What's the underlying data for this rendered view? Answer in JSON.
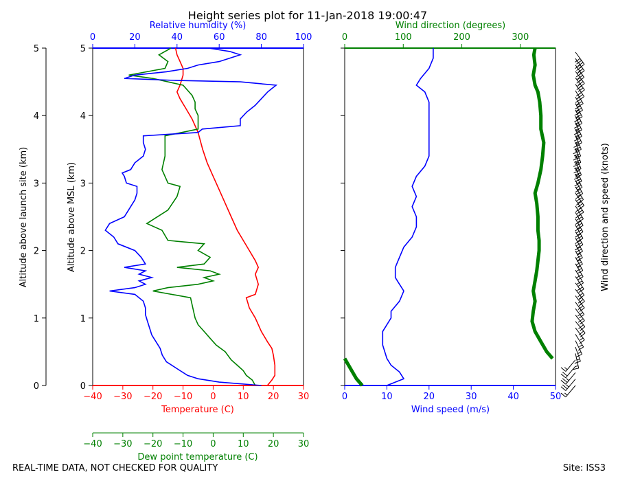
{
  "title": "Height series plot for 11-Jan-2018 19:00:47",
  "footer": {
    "quality_note": "REAL-TIME DATA, NOT CHECKED FOR QUALITY",
    "site": "Site: ISS3"
  },
  "colors": {
    "temperature": "#ff0000",
    "dewpoint": "#008000",
    "humidity": "#0000ff",
    "wind_speed": "#0000ff",
    "wind_direction": "#008000",
    "barbs": "#000000"
  },
  "chart_data": [
    {
      "type": "line",
      "panel": "thermodynamic",
      "y_axes": [
        {
          "label": "Altitude above launch site (km)",
          "range": [
            0,
            5
          ],
          "ticks": [
            "0",
            "1",
            "2",
            "3",
            "4",
            "5"
          ]
        },
        {
          "label": "Altitude above MSL (km)",
          "range": [
            0,
            5
          ],
          "ticks": [
            "0",
            "1",
            "2",
            "3",
            "4",
            "5"
          ]
        }
      ],
      "x_axes": [
        {
          "label": "Temperature (C)",
          "position": "bottom",
          "range": [
            -40,
            30
          ],
          "ticks": [
            "−40",
            "−30",
            "−20",
            "−10",
            "0",
            "10",
            "20",
            "30"
          ],
          "color": "#ff0000"
        },
        {
          "label": "Dew point temperature (C)",
          "position": "bottom-offset",
          "range": [
            -40,
            30
          ],
          "ticks": [
            "−40",
            "−30",
            "−20",
            "−10",
            "0",
            "10",
            "20",
            "30"
          ],
          "color": "#008000"
        },
        {
          "label": "Relative humidity (%)",
          "position": "top",
          "range": [
            0,
            100
          ],
          "ticks": [
            "0",
            "20",
            "40",
            "60",
            "80",
            "100"
          ],
          "color": "#0000ff"
        }
      ],
      "series": [
        {
          "name": "Temperature",
          "axis": "temperature",
          "color": "#ff0000",
          "points": [
            [
              18,
              0
            ],
            [
              19.5,
              0.08
            ],
            [
              20.5,
              0.15
            ],
            [
              20.5,
              0.3
            ],
            [
              20,
              0.45
            ],
            [
              19.5,
              0.55
            ],
            [
              18,
              0.65
            ],
            [
              16,
              0.8
            ],
            [
              14,
              1.0
            ],
            [
              12,
              1.15
            ],
            [
              11,
              1.3
            ],
            [
              14,
              1.35
            ],
            [
              15,
              1.5
            ],
            [
              14,
              1.65
            ],
            [
              15,
              1.75
            ],
            [
              14,
              1.85
            ],
            [
              12,
              2.0
            ],
            [
              10,
              2.15
            ],
            [
              8,
              2.3
            ],
            [
              6,
              2.5
            ],
            [
              4,
              2.7
            ],
            [
              2,
              2.9
            ],
            [
              0,
              3.1
            ],
            [
              -2,
              3.3
            ],
            [
              -3.5,
              3.5
            ],
            [
              -5,
              3.75
            ],
            [
              -7,
              3.95
            ],
            [
              -9,
              4.1
            ],
            [
              -11,
              4.25
            ],
            [
              -12,
              4.35
            ],
            [
              -11,
              4.45
            ],
            [
              -10,
              4.6
            ],
            [
              -10,
              4.7
            ],
            [
              -11,
              4.8
            ],
            [
              -12,
              4.9
            ],
            [
              -12.5,
              5.0
            ]
          ]
        },
        {
          "name": "Dew point",
          "axis": "temperature",
          "color": "#008000",
          "points": [
            [
              14,
              0.0
            ],
            [
              13,
              0.08
            ],
            [
              11,
              0.15
            ],
            [
              10,
              0.22
            ],
            [
              8,
              0.3
            ],
            [
              6,
              0.38
            ],
            [
              4,
              0.5
            ],
            [
              1,
              0.6
            ],
            [
              -1,
              0.7
            ],
            [
              -3,
              0.8
            ],
            [
              -5,
              0.9
            ],
            [
              -6,
              1.0
            ],
            [
              -6.5,
              1.1
            ],
            [
              -7,
              1.2
            ],
            [
              -7.5,
              1.3
            ],
            [
              -20,
              1.4
            ],
            [
              -15,
              1.45
            ],
            [
              -5,
              1.5
            ],
            [
              0,
              1.55
            ],
            [
              -3,
              1.6
            ],
            [
              2,
              1.65
            ],
            [
              -1,
              1.7
            ],
            [
              -12,
              1.75
            ],
            [
              -3,
              1.8
            ],
            [
              -1,
              1.9
            ],
            [
              -5,
              2.0
            ],
            [
              -3,
              2.1
            ],
            [
              -15,
              2.15
            ],
            [
              -17,
              2.3
            ],
            [
              -22,
              2.4
            ],
            [
              -15,
              2.6
            ],
            [
              -12,
              2.8
            ],
            [
              -11,
              2.95
            ],
            [
              -15,
              3.0
            ],
            [
              -17,
              3.2
            ],
            [
              -16,
              3.4
            ],
            [
              -16,
              3.7
            ],
            [
              -5,
              3.8
            ],
            [
              -5,
              4.0
            ],
            [
              -6,
              4.1
            ],
            [
              -6,
              4.2
            ],
            [
              -7,
              4.3
            ],
            [
              -10,
              4.45
            ],
            [
              -20,
              4.55
            ],
            [
              -28,
              4.6
            ],
            [
              -22,
              4.65
            ],
            [
              -16,
              4.7
            ],
            [
              -15,
              4.8
            ],
            [
              -18,
              4.9
            ],
            [
              -14,
              5.0
            ]
          ]
        },
        {
          "name": "Relative humidity",
          "axis": "humidity",
          "color": "#0000ff",
          "points": [
            [
              80,
              0.0
            ],
            [
              60,
              0.05
            ],
            [
              50,
              0.1
            ],
            [
              45,
              0.15
            ],
            [
              40,
              0.25
            ],
            [
              35,
              0.35
            ],
            [
              33,
              0.45
            ],
            [
              32,
              0.55
            ],
            [
              30,
              0.65
            ],
            [
              28,
              0.75
            ],
            [
              27,
              0.85
            ],
            [
              26,
              0.95
            ],
            [
              25,
              1.05
            ],
            [
              25,
              1.15
            ],
            [
              24,
              1.25
            ],
            [
              20,
              1.35
            ],
            [
              8,
              1.4
            ],
            [
              20,
              1.45
            ],
            [
              25,
              1.5
            ],
            [
              22,
              1.55
            ],
            [
              28,
              1.6
            ],
            [
              22,
              1.65
            ],
            [
              25,
              1.7
            ],
            [
              15,
              1.75
            ],
            [
              25,
              1.8
            ],
            [
              23,
              1.9
            ],
            [
              20,
              2.0
            ],
            [
              12,
              2.1
            ],
            [
              10,
              2.2
            ],
            [
              6,
              2.3
            ],
            [
              8,
              2.4
            ],
            [
              15,
              2.5
            ],
            [
              17,
              2.6
            ],
            [
              20,
              2.75
            ],
            [
              21,
              2.85
            ],
            [
              21,
              2.95
            ],
            [
              16,
              3.0
            ],
            [
              15,
              3.1
            ],
            [
              14,
              3.15
            ],
            [
              18,
              3.2
            ],
            [
              20,
              3.3
            ],
            [
              24,
              3.4
            ],
            [
              25,
              3.5
            ],
            [
              24,
              3.6
            ],
            [
              24,
              3.7
            ],
            [
              50,
              3.75
            ],
            [
              52,
              3.8
            ],
            [
              70,
              3.85
            ],
            [
              70,
              3.95
            ],
            [
              73,
              4.05
            ],
            [
              77,
              4.15
            ],
            [
              80,
              4.25
            ],
            [
              83,
              4.35
            ],
            [
              85,
              4.4
            ],
            [
              87,
              4.45
            ],
            [
              70,
              4.5
            ],
            [
              40,
              4.52
            ],
            [
              15,
              4.55
            ],
            [
              20,
              4.6
            ],
            [
              35,
              4.65
            ],
            [
              45,
              4.7
            ],
            [
              50,
              4.75
            ],
            [
              60,
              4.8
            ],
            [
              70,
              4.9
            ],
            [
              65,
              4.95
            ],
            [
              55,
              5.0
            ]
          ]
        }
      ]
    },
    {
      "type": "line",
      "panel": "wind",
      "x_axes": [
        {
          "label": "Wind speed (m/s)",
          "position": "bottom",
          "range": [
            0,
            50
          ],
          "ticks": [
            "0",
            "10",
            "20",
            "30",
            "40",
            "50"
          ],
          "color": "#0000ff"
        },
        {
          "label": "Wind direction (degrees)",
          "position": "top",
          "range": [
            0,
            360
          ],
          "ticks": [
            "0",
            "100",
            "200",
            "300"
          ],
          "color": "#008000"
        }
      ],
      "y_range": [
        0,
        5
      ],
      "series": [
        {
          "name": "Wind speed",
          "axis": "speed",
          "color": "#0000ff",
          "points": [
            [
              10,
              0.0
            ],
            [
              14,
              0.1
            ],
            [
              13,
              0.2
            ],
            [
              11,
              0.3
            ],
            [
              10,
              0.4
            ],
            [
              9,
              0.6
            ],
            [
              9,
              0.8
            ],
            [
              10,
              0.9
            ],
            [
              11,
              1.0
            ],
            [
              11,
              1.1
            ],
            [
              13,
              1.25
            ],
            [
              14,
              1.4
            ],
            [
              13,
              1.5
            ],
            [
              12,
              1.6
            ],
            [
              12,
              1.75
            ],
            [
              13,
              1.9
            ],
            [
              14,
              2.05
            ],
            [
              16,
              2.2
            ],
            [
              17,
              2.35
            ],
            [
              17,
              2.5
            ],
            [
              16,
              2.65
            ],
            [
              17,
              2.8
            ],
            [
              16,
              2.95
            ],
            [
              17,
              3.1
            ],
            [
              19,
              3.25
            ],
            [
              20,
              3.4
            ],
            [
              20,
              3.6
            ],
            [
              20,
              3.8
            ],
            [
              20,
              4.0
            ],
            [
              20,
              4.2
            ],
            [
              19,
              4.35
            ],
            [
              17,
              4.45
            ],
            [
              18,
              4.55
            ],
            [
              20,
              4.7
            ],
            [
              21,
              4.85
            ],
            [
              21,
              5.0
            ]
          ]
        },
        {
          "name": "Wind direction",
          "axis": "direction",
          "color": "#008000",
          "points": [
            [
              0,
              0.4
            ],
            [
              10,
              0.25
            ],
            [
              20,
              0.1
            ],
            [
              30,
              0.0
            ],
            [
              355,
              0.4
            ],
            [
              345,
              0.5
            ],
            [
              335,
              0.65
            ],
            [
              325,
              0.8
            ],
            [
              320,
              0.95
            ],
            [
              322,
              1.1
            ],
            [
              325,
              1.25
            ],
            [
              322,
              1.4
            ],
            [
              325,
              1.55
            ],
            [
              328,
              1.7
            ],
            [
              330,
              1.85
            ],
            [
              332,
              2.0
            ],
            [
              332,
              2.15
            ],
            [
              330,
              2.3
            ],
            [
              330,
              2.5
            ],
            [
              328,
              2.7
            ],
            [
              325,
              2.85
            ],
            [
              330,
              3.0
            ],
            [
              335,
              3.2
            ],
            [
              338,
              3.4
            ],
            [
              340,
              3.6
            ],
            [
              335,
              3.8
            ],
            [
              335,
              4.0
            ],
            [
              333,
              4.2
            ],
            [
              330,
              4.35
            ],
            [
              325,
              4.45
            ],
            [
              322,
              4.6
            ],
            [
              325,
              4.75
            ],
            [
              323,
              4.9
            ],
            [
              325,
              5.0
            ]
          ]
        }
      ]
    },
    {
      "type": "barbs",
      "panel": "wind_barbs",
      "label": "Wind direction and speed (knots)"
    }
  ]
}
